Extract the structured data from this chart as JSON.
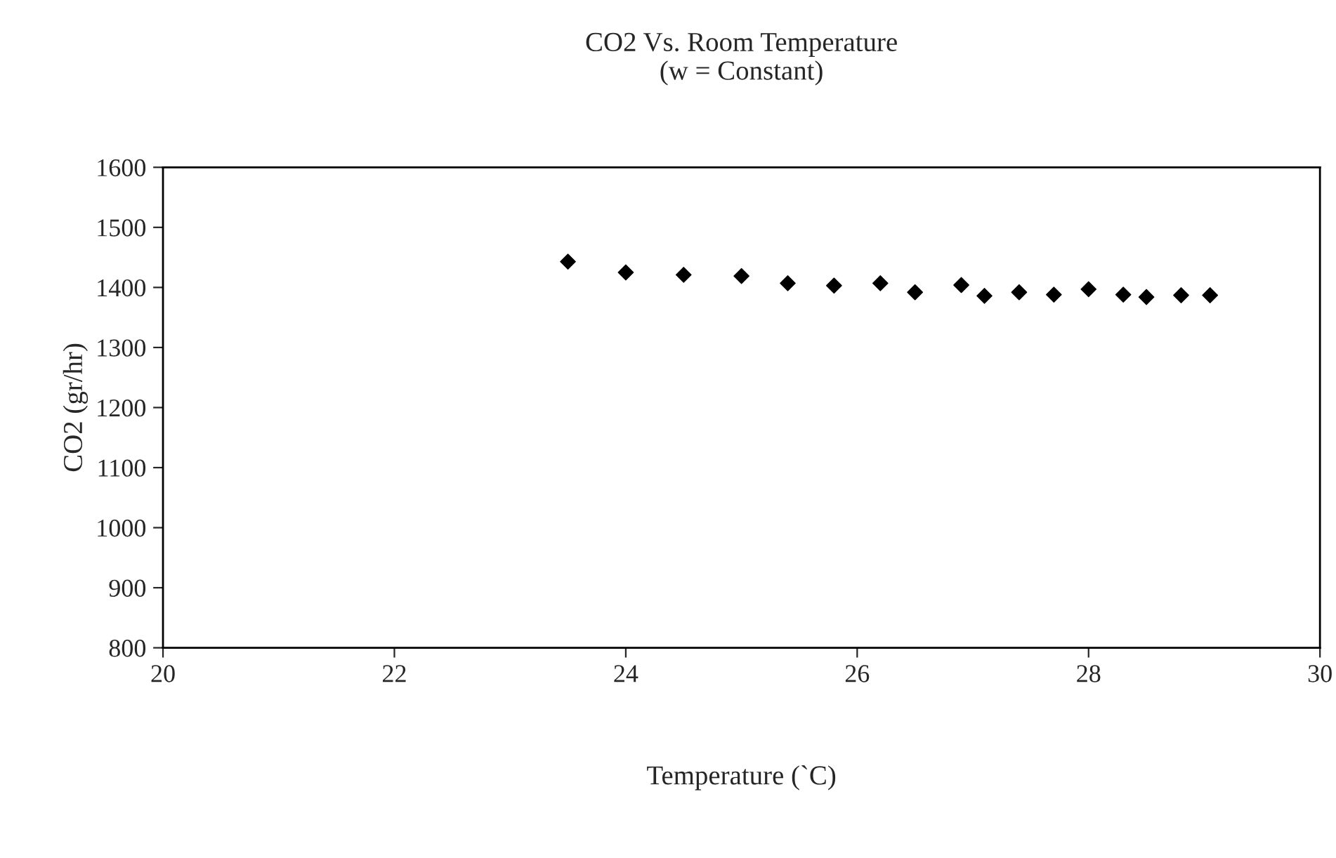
{
  "chart_data": {
    "type": "scatter",
    "title": "CO2 Vs. Room Temperature\n(w = Constant)",
    "xlabel": "Temperature (`C)",
    "ylabel": "CO2 (gr/hr)",
    "x": [
      23.5,
      24.0,
      24.5,
      25.0,
      25.4,
      25.8,
      26.2,
      26.5,
      26.9,
      27.1,
      27.4,
      27.7,
      28.0,
      28.3,
      28.5,
      28.8,
      29.05
    ],
    "values": [
      1443,
      1425,
      1421,
      1419,
      1407,
      1403,
      1407,
      1392,
      1404,
      1386,
      1392,
      1388,
      1397,
      1388,
      1384,
      1387,
      1387
    ],
    "color": "#000000",
    "marker": "diamond",
    "xlim": [
      20,
      30
    ],
    "xticks": [
      20,
      22,
      24,
      26,
      28,
      30
    ],
    "ylim": [
      800,
      1600
    ],
    "yticks": [
      800,
      900,
      1000,
      1100,
      1200,
      1300,
      1400,
      1500,
      1600
    ],
    "grid": false,
    "legend": false
  }
}
